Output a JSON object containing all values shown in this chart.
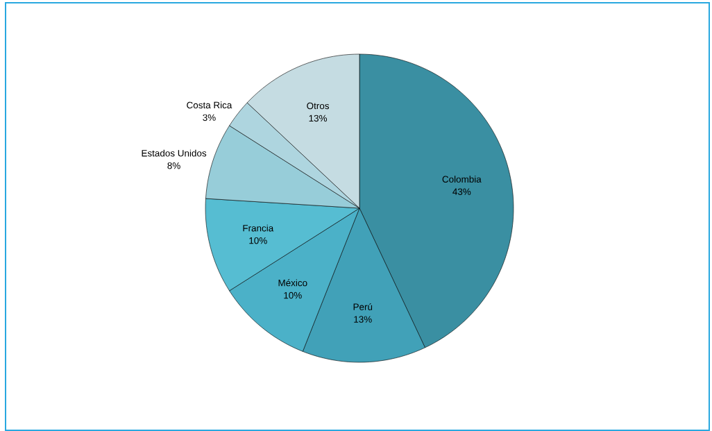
{
  "chart_data": {
    "type": "pie",
    "categories": [
      "Colombia",
      "Perú",
      "México",
      "Francia",
      "Estados Unidos",
      "Costa Rica",
      "Otros"
    ],
    "values": [
      43,
      13,
      10,
      10,
      8,
      3,
      13
    ],
    "value_labels": [
      "43%",
      "13%",
      "10%",
      "10%",
      "8%",
      "3%",
      "13%"
    ],
    "colors": [
      "#3a8fa2",
      "#41a1b8",
      "#4bb1c8",
      "#56bdd2",
      "#97cdd9",
      "#aed5df",
      "#c5dce2"
    ],
    "data_labels": true
  }
}
